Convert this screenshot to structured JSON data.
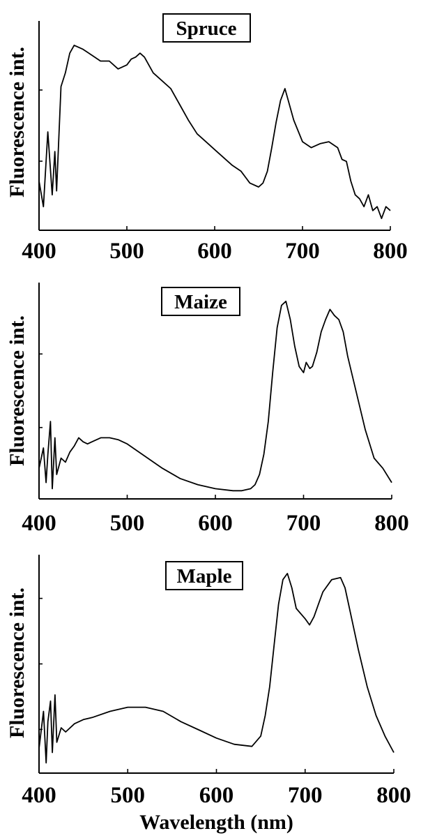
{
  "chart_data": [
    {
      "type": "line",
      "title": "Spruce",
      "ylabel": "Fluorescence int.",
      "xlabel": "",
      "xlim": [
        400,
        800
      ],
      "ylim": [
        0,
        1
      ],
      "xticks": [
        400,
        500,
        600,
        700,
        800
      ],
      "series": [
        {
          "x": [
            400,
            405,
            410,
            415,
            418,
            420,
            425,
            430,
            435,
            440,
            450,
            460,
            470,
            480,
            490,
            500,
            505,
            510,
            515,
            520,
            530,
            540,
            550,
            560,
            570,
            580,
            590,
            600,
            610,
            620,
            630,
            640,
            650,
            655,
            660,
            665,
            670,
            675,
            680,
            685,
            690,
            700,
            710,
            720,
            730,
            740,
            745,
            750,
            755,
            760,
            765,
            770,
            775,
            780,
            785,
            790,
            795,
            800
          ],
          "y": [
            0.25,
            0.12,
            0.5,
            0.18,
            0.4,
            0.2,
            0.73,
            0.8,
            0.9,
            0.94,
            0.92,
            0.89,
            0.86,
            0.86,
            0.82,
            0.84,
            0.87,
            0.88,
            0.9,
            0.88,
            0.8,
            0.76,
            0.72,
            0.64,
            0.56,
            0.49,
            0.45,
            0.41,
            0.37,
            0.33,
            0.3,
            0.24,
            0.22,
            0.24,
            0.3,
            0.42,
            0.55,
            0.66,
            0.72,
            0.64,
            0.56,
            0.45,
            0.42,
            0.44,
            0.45,
            0.42,
            0.36,
            0.35,
            0.25,
            0.18,
            0.16,
            0.12,
            0.18,
            0.1,
            0.12,
            0.06,
            0.12,
            0.1
          ]
        }
      ]
    },
    {
      "type": "line",
      "title": "Maize",
      "ylabel": "Fluorescence int.",
      "xlabel": "",
      "xlim": [
        400,
        800
      ],
      "ylim": [
        0,
        1
      ],
      "xticks": [
        400,
        500,
        600,
        700,
        800
      ],
      "series": [
        {
          "x": [
            400,
            405,
            408,
            410,
            413,
            415,
            418,
            420,
            425,
            430,
            435,
            440,
            445,
            450,
            455,
            460,
            470,
            480,
            490,
            500,
            520,
            540,
            560,
            580,
            600,
            620,
            630,
            640,
            645,
            650,
            655,
            660,
            665,
            670,
            675,
            680,
            685,
            690,
            695,
            700,
            703,
            707,
            710,
            715,
            720,
            725,
            730,
            735,
            740,
            745,
            750,
            760,
            770,
            780,
            790,
            800
          ],
          "y": [
            0.15,
            0.25,
            0.08,
            0.22,
            0.38,
            0.05,
            0.3,
            0.12,
            0.2,
            0.18,
            0.23,
            0.26,
            0.3,
            0.28,
            0.27,
            0.28,
            0.3,
            0.3,
            0.29,
            0.27,
            0.21,
            0.15,
            0.1,
            0.07,
            0.05,
            0.04,
            0.04,
            0.05,
            0.07,
            0.12,
            0.22,
            0.38,
            0.62,
            0.84,
            0.95,
            0.97,
            0.88,
            0.75,
            0.65,
            0.62,
            0.67,
            0.64,
            0.65,
            0.72,
            0.82,
            0.88,
            0.93,
            0.9,
            0.88,
            0.82,
            0.7,
            0.52,
            0.34,
            0.2,
            0.15,
            0.08
          ]
        }
      ]
    },
    {
      "type": "line",
      "title": "Maple",
      "ylabel": "Fluorescence int.",
      "xlabel": "Wavelength (nm)",
      "xlim": [
        400,
        800
      ],
      "ylim": [
        0,
        1
      ],
      "xticks": [
        400,
        500,
        600,
        700,
        800
      ],
      "series": [
        {
          "x": [
            400,
            405,
            408,
            410,
            413,
            415,
            418,
            420,
            425,
            430,
            440,
            450,
            460,
            480,
            500,
            520,
            540,
            560,
            580,
            600,
            620,
            640,
            650,
            655,
            660,
            665,
            670,
            675,
            680,
            685,
            690,
            700,
            705,
            710,
            715,
            720,
            730,
            740,
            745,
            750,
            760,
            770,
            780,
            790,
            800
          ],
          "y": [
            0.12,
            0.3,
            0.05,
            0.25,
            0.35,
            0.1,
            0.38,
            0.15,
            0.22,
            0.2,
            0.24,
            0.26,
            0.27,
            0.3,
            0.32,
            0.32,
            0.3,
            0.25,
            0.21,
            0.17,
            0.14,
            0.13,
            0.18,
            0.28,
            0.42,
            0.62,
            0.82,
            0.94,
            0.97,
            0.9,
            0.8,
            0.75,
            0.72,
            0.76,
            0.82,
            0.88,
            0.94,
            0.95,
            0.9,
            0.8,
            0.6,
            0.42,
            0.28,
            0.18,
            0.1
          ]
        }
      ]
    }
  ]
}
